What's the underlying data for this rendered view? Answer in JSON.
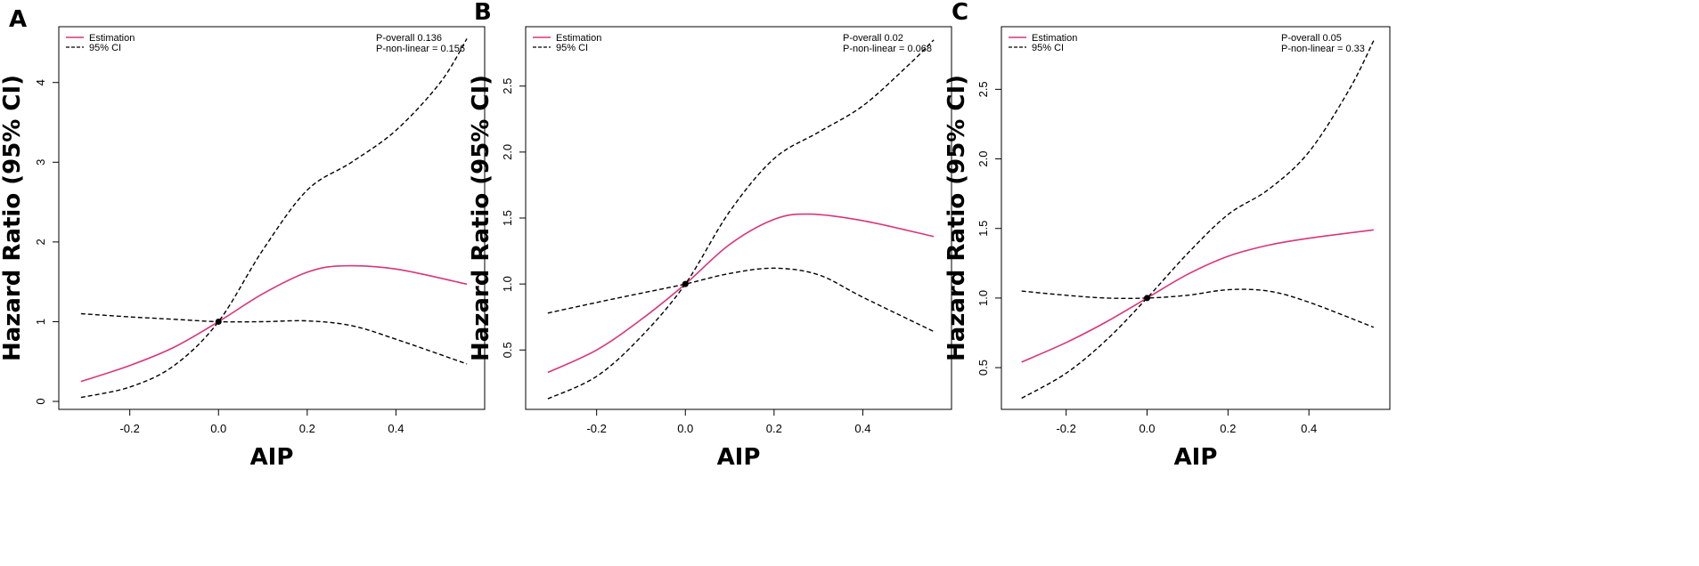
{
  "figure": {
    "x_title": "AIP",
    "y_title": "Hazard Ratio (95% CI)",
    "legend": {
      "estimation_label": "Estimation",
      "ci_label": "95% CI"
    }
  },
  "colors": {
    "estimation": "#d9357a",
    "ci": "#000000",
    "frame": "#000000"
  },
  "chart_data": [
    {
      "type": "line",
      "panel_label": "A",
      "p_overall": "P-overall 0.136",
      "p_nonlinear": "P-non-linear = 0.156",
      "xlabel": "AIP",
      "ylabel": "Hazard Ratio (95% CI)",
      "xlim": [
        -0.36,
        0.6
      ],
      "ylim": [
        -0.1,
        4.7
      ],
      "x_ticks": [
        -0.2,
        0.0,
        0.2,
        0.4
      ],
      "x_tick_labels": [
        "-0.2",
        "0.0",
        "0.2",
        "0.4"
      ],
      "y_ticks": [
        0,
        1,
        2,
        3,
        4
      ],
      "y_tick_labels": [
        "0",
        "1",
        "2",
        "3",
        "4"
      ],
      "reference_point": [
        0,
        1
      ],
      "series": [
        {
          "name": "Estimation",
          "x": [
            -0.31,
            -0.2,
            -0.1,
            0.0,
            0.1,
            0.2,
            0.28,
            0.4,
            0.56
          ],
          "values": [
            0.25,
            0.45,
            0.68,
            1.0,
            1.35,
            1.62,
            1.7,
            1.66,
            1.47
          ]
        },
        {
          "name": "95% CI upper",
          "x": [
            -0.31,
            -0.2,
            -0.1,
            0.0,
            0.1,
            0.2,
            0.3,
            0.4,
            0.5,
            0.56
          ],
          "values": [
            0.05,
            0.18,
            0.45,
            1.0,
            1.9,
            2.65,
            3.0,
            3.4,
            4.0,
            4.55
          ]
        },
        {
          "name": "95% CI lower",
          "x": [
            -0.31,
            -0.2,
            -0.1,
            0.0,
            0.1,
            0.2,
            0.3,
            0.4,
            0.56
          ],
          "values": [
            1.1,
            1.06,
            1.03,
            1.0,
            1.0,
            1.01,
            0.95,
            0.78,
            0.47
          ]
        }
      ]
    },
    {
      "type": "line",
      "panel_label": "B",
      "p_overall": "P-overall 0.02",
      "p_nonlinear": "P-non-linear = 0.068",
      "xlabel": "AIP",
      "ylabel": "Hazard Ratio (95% CI)",
      "xlim": [
        -0.36,
        0.6
      ],
      "ylim": [
        0.05,
        2.95
      ],
      "x_ticks": [
        -0.2,
        0.0,
        0.2,
        0.4
      ],
      "x_tick_labels": [
        "-0.2",
        "0.0",
        "0.2",
        "0.4"
      ],
      "y_ticks": [
        0.5,
        1.0,
        1.5,
        2.0,
        2.5
      ],
      "y_tick_labels": [
        "0.5",
        "1.0",
        "1.5",
        "2.0",
        "2.5"
      ],
      "reference_point": [
        0,
        1
      ],
      "series": [
        {
          "name": "Estimation",
          "x": [
            -0.31,
            -0.2,
            -0.1,
            0.0,
            0.1,
            0.2,
            0.28,
            0.4,
            0.56
          ],
          "values": [
            0.33,
            0.5,
            0.73,
            1.0,
            1.3,
            1.49,
            1.53,
            1.48,
            1.36
          ]
        },
        {
          "name": "95% CI upper",
          "x": [
            -0.31,
            -0.2,
            -0.1,
            0.0,
            0.1,
            0.2,
            0.3,
            0.4,
            0.5,
            0.56
          ],
          "values": [
            0.13,
            0.3,
            0.6,
            1.0,
            1.55,
            1.95,
            2.15,
            2.35,
            2.65,
            2.85
          ]
        },
        {
          "name": "95% CI lower",
          "x": [
            -0.31,
            -0.2,
            -0.1,
            0.0,
            0.1,
            0.2,
            0.3,
            0.4,
            0.56
          ],
          "values": [
            0.78,
            0.86,
            0.93,
            1.0,
            1.08,
            1.12,
            1.07,
            0.9,
            0.64
          ]
        }
      ]
    },
    {
      "type": "line",
      "panel_label": "C",
      "p_overall": "P-overall 0.05",
      "p_nonlinear": "P-non-linear = 0.33",
      "xlabel": "AIP",
      "ylabel": "Hazard Ratio (95% CI)",
      "xlim": [
        -0.36,
        0.6
      ],
      "ylim": [
        0.2,
        2.95
      ],
      "x_ticks": [
        -0.2,
        0.0,
        0.2,
        0.4
      ],
      "x_tick_labels": [
        "-0.2",
        "0.0",
        "0.2",
        "0.4"
      ],
      "y_ticks": [
        0.5,
        1.0,
        1.5,
        2.0,
        2.5
      ],
      "y_tick_labels": [
        "0.5",
        "1.0",
        "1.5",
        "2.0",
        "2.5"
      ],
      "reference_point": [
        0,
        1
      ],
      "series": [
        {
          "name": "Estimation",
          "x": [
            -0.31,
            -0.2,
            -0.1,
            0.0,
            0.1,
            0.2,
            0.3,
            0.4,
            0.56
          ],
          "values": [
            0.54,
            0.68,
            0.83,
            1.0,
            1.17,
            1.3,
            1.38,
            1.43,
            1.49
          ]
        },
        {
          "name": "95% CI upper",
          "x": [
            -0.31,
            -0.2,
            -0.1,
            0.0,
            0.1,
            0.2,
            0.3,
            0.4,
            0.5,
            0.56
          ],
          "values": [
            0.28,
            0.46,
            0.7,
            1.0,
            1.32,
            1.6,
            1.78,
            2.05,
            2.5,
            2.85
          ]
        },
        {
          "name": "95% CI lower",
          "x": [
            -0.31,
            -0.2,
            -0.1,
            0.0,
            0.1,
            0.2,
            0.3,
            0.4,
            0.56
          ],
          "values": [
            1.05,
            1.02,
            1.0,
            1.0,
            1.02,
            1.06,
            1.05,
            0.97,
            0.79
          ]
        }
      ]
    }
  ]
}
